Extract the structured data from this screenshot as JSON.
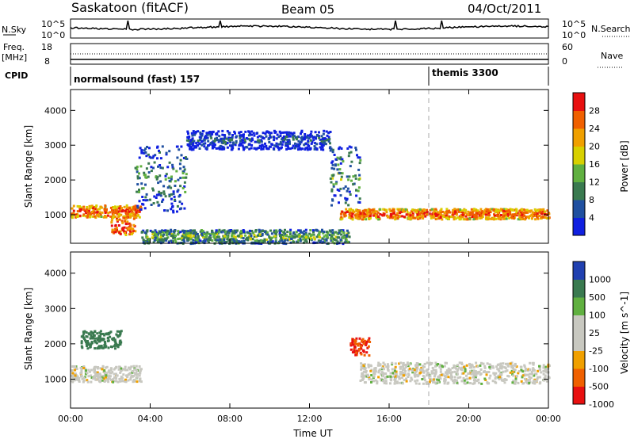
{
  "header": {
    "station": "Saskatoon (fitACF)",
    "beam": "Beam 05",
    "date": "04/Oct/2011"
  },
  "nsky_panel": {
    "left_label": "N.Sky",
    "right_label": "N.Search",
    "left_ticks": [
      "10^5",
      "10^0"
    ],
    "right_ticks": [
      "10^5",
      "10^0"
    ]
  },
  "freq_panel": {
    "left_label_1": "Freq.",
    "left_label_2": "[MHz]",
    "right_label": "Nave",
    "left_ticks": [
      "18",
      "8"
    ],
    "right_ticks": [
      "60",
      "0"
    ]
  },
  "cpid": {
    "label": "CPID",
    "segments": [
      {
        "text": "normalsound (fast) 157",
        "start_hour": 0
      },
      {
        "text": "themis 3300",
        "start_hour": 18
      }
    ]
  },
  "colors": {
    "power": [
      "#1020e0",
      "#2050a0",
      "#3a7a50",
      "#60b040",
      "#d8d000",
      "#f0a000",
      "#f06000",
      "#e81010"
    ],
    "velocity": [
      "#e81010",
      "#f06000",
      "#f0a000",
      "#c8c8c0",
      "#c8c8c0",
      "#60b040",
      "#3a7a50",
      "#2040b0"
    ]
  },
  "chart_data": [
    {
      "type": "heatmap",
      "quantity": "power",
      "ylabel": "Slant Range [km]",
      "xlabel": "Time UT",
      "x_ticks": [
        "00:00",
        "04:00",
        "08:00",
        "12:00",
        "16:00",
        "20:00",
        "00:00"
      ],
      "xlim": [
        0,
        24
      ],
      "ylim": [
        180,
        4600
      ],
      "y_ticks": [
        1000,
        2000,
        3000,
        4000
      ],
      "colorbar": {
        "label": "Power [dB]",
        "range": [
          0,
          32
        ],
        "ticks": [
          "4",
          "8",
          "12",
          "16",
          "20",
          "24",
          "28"
        ]
      },
      "features": [
        {
          "desc": "main ionospheric band",
          "t_start": 0,
          "t_end": 3.5,
          "range_km": [
            950,
            1300
          ],
          "power_dB": 28
        },
        {
          "desc": "main ionospheric band",
          "t_start": 13.5,
          "t_end": 24,
          "range_km": [
            900,
            1200
          ],
          "power_dB": 28
        },
        {
          "desc": "intense patch",
          "t_start": 2.0,
          "t_end": 3.2,
          "range_km": [
            450,
            1000
          ],
          "power_dB": 30
        },
        {
          "desc": "rising echo arc",
          "t_start": 3.2,
          "t_end": 5.8,
          "range_km": [
            1100,
            3000
          ],
          "power_dB": 10
        },
        {
          "desc": "far-range daytime echoes",
          "t_start": 5.8,
          "t_end": 13.0,
          "range_km": [
            2900,
            3450
          ],
          "power_dB": 6
        },
        {
          "desc": "descending echo arc",
          "t_start": 13.0,
          "t_end": 14.5,
          "range_km": [
            1300,
            3000
          ],
          "power_dB": 12
        },
        {
          "desc": "near-range ground echoes",
          "t_start": 3.5,
          "t_end": 14.0,
          "range_km": [
            200,
            600
          ],
          "power_dB": 14
        }
      ]
    },
    {
      "type": "heatmap",
      "quantity": "velocity",
      "ylabel": "Slant Range [km]",
      "xlabel": "Time UT",
      "x_ticks": [
        "00:00",
        "04:00",
        "08:00",
        "12:00",
        "16:00",
        "20:00",
        "00:00"
      ],
      "xlim": [
        0,
        24
      ],
      "ylim": [
        180,
        4600
      ],
      "y_ticks": [
        1000,
        2000,
        3000,
        4000
      ],
      "colorbar": {
        "label": "Velocity [m s^-1]",
        "ticks": [
          "1000",
          "500",
          "100",
          "25",
          "-25",
          "-100",
          "-500",
          "-1000"
        ]
      },
      "features": [
        {
          "desc": "main band near-zero velocity",
          "t_start": 0,
          "t_end": 3.5,
          "range_km": [
            950,
            1400
          ],
          "velocity_ms": 0
        },
        {
          "desc": "main band near-zero velocity",
          "t_start": 14.5,
          "t_end": 24,
          "range_km": [
            900,
            1500
          ],
          "velocity_ms": 0
        },
        {
          "desc": "negative velocity patch",
          "t_start": 14.0,
          "t_end": 15.0,
          "range_km": [
            1700,
            2200
          ],
          "velocity_ms": -500
        },
        {
          "desc": "positive velocity patch",
          "t_start": 0.5,
          "t_end": 2.5,
          "range_km": [
            1900,
            2400
          ],
          "velocity_ms": 300
        }
      ]
    }
  ]
}
